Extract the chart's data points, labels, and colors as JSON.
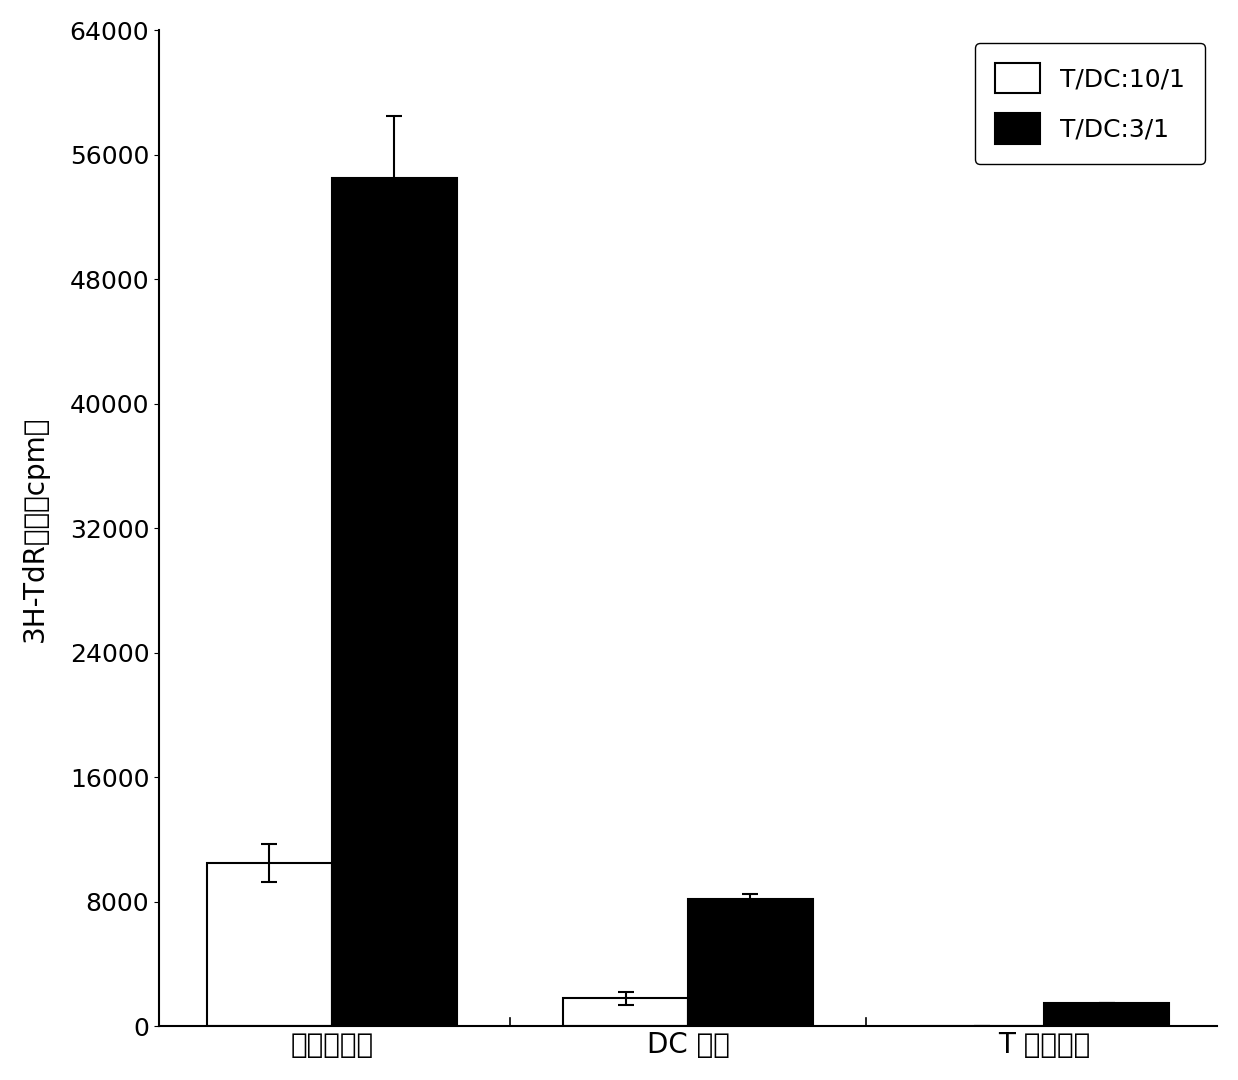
{
  "categories": [
    "免疫肽刺激",
    "DC 对照",
    "T 细胞对照"
  ],
  "white_bars": [
    10500,
    1800,
    0
  ],
  "black_bars": [
    54500,
    8200,
    1500
  ],
  "white_errors": [
    1200,
    400,
    0
  ],
  "black_errors": [
    4000,
    300,
    0
  ],
  "ylabel": "3H-TdR插入（cpm）",
  "ylim": [
    0,
    64000
  ],
  "yticks": [
    0,
    8000,
    16000,
    24000,
    32000,
    40000,
    48000,
    56000,
    64000
  ],
  "legend_labels": [
    "T/DC:10/1",
    "T/DC:3/1"
  ],
  "bar_width": 0.35,
  "white_color": "#ffffff",
  "black_color": "#000000",
  "edge_color": "#000000",
  "background_color": "#ffffff",
  "fontsize_labels": 20,
  "fontsize_ticks": 18,
  "fontsize_legend": 18,
  "fontsize_ylabel": 20
}
